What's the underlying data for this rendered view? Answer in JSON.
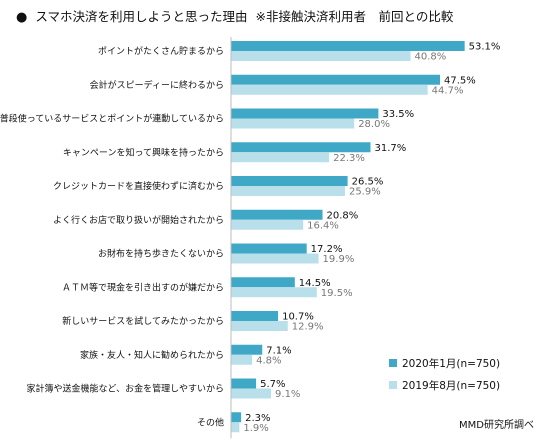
{
  "title": {
    "bullet": "●",
    "text": "スマホ決済を利用しようと思った理由",
    "note": "※非接触決済利用者　前回との比較"
  },
  "source": "MMD研究所調べ",
  "chart_data": {
    "type": "bar",
    "orientation": "horizontal",
    "categories": [
      "ポイントがたくさん貯まるから",
      "会計がスピーディーに終わるから",
      "普段使っているサービスとポイントが連動しているから",
      "キャンペーンを知って興味を持ったから",
      "クレジットカードを直接使わずに済むから",
      "よく行くお店で取り扱いが開始されたから",
      "お財布を持ち歩きたくないから",
      "ＡＴＭ等で現金を引き出すのが嫌だから",
      "新しいサービスを試してみたかったから",
      "家族・友人・知人に勧められたから",
      "家計簿や送金機能など、お金を管理しやすいから",
      "その他"
    ],
    "series": [
      {
        "name": "2020年1月(n=750)",
        "values": [
          53.1,
          47.5,
          33.5,
          31.7,
          26.5,
          20.8,
          17.2,
          14.5,
          10.7,
          7.1,
          5.7,
          2.3
        ],
        "color": "#3fa8c6"
      },
      {
        "name": "2019年8月(n=750)",
        "values": [
          40.8,
          44.7,
          28.0,
          22.3,
          25.9,
          16.4,
          19.9,
          19.5,
          12.9,
          4.8,
          9.1,
          1.9
        ],
        "color": "#b9dfeb"
      }
    ],
    "value_format": "%",
    "xlim": [
      0,
      60
    ],
    "legend_position": "bottom-right",
    "label_colors": {
      "primary": "#111111",
      "secondary": "#777777"
    }
  }
}
